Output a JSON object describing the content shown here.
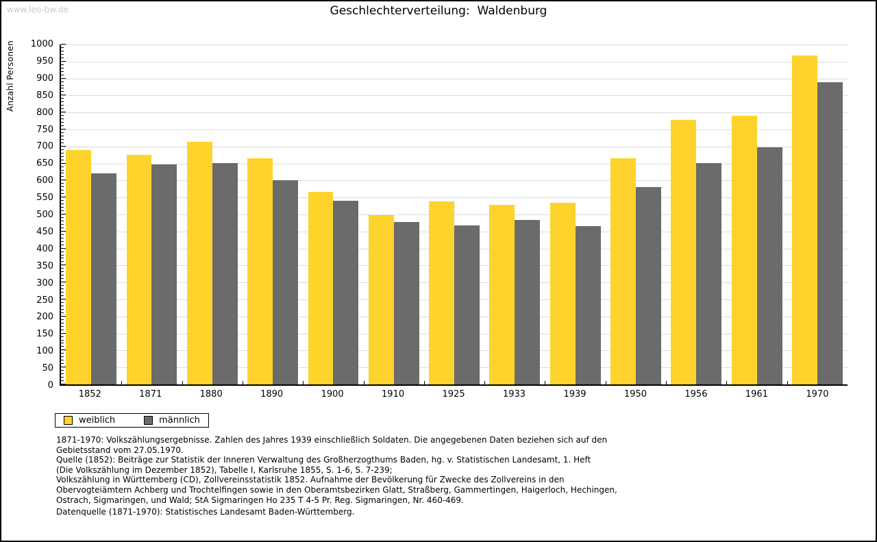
{
  "page": {
    "watermark": "www.leo-bw.de",
    "title": "Geschlechterverteilung:  Waldenburg"
  },
  "chart_data": {
    "type": "bar",
    "title": "Geschlechterverteilung: Waldenburg",
    "xlabel": "",
    "ylabel": "Anzahl Personen",
    "ylim": [
      0,
      1000
    ],
    "ytick_step": 50,
    "yminor_step": 10,
    "grid": true,
    "legend_position": "bottom-left",
    "categories": [
      "1852",
      "1871",
      "1880",
      "1890",
      "1900",
      "1910",
      "1925",
      "1933",
      "1939",
      "1950",
      "1956",
      "1961",
      "1970"
    ],
    "series": [
      {
        "name": "weiblich",
        "color": "#FDD32C",
        "values": [
          690,
          676,
          713,
          665,
          566,
          498,
          539,
          528,
          535,
          666,
          779,
          790,
          967
        ]
      },
      {
        "name": "männlich",
        "color": "#6B6B6B",
        "values": [
          620,
          647,
          652,
          601,
          540,
          478,
          468,
          484,
          466,
          581,
          652,
          698,
          889
        ]
      }
    ]
  },
  "footnotes": {
    "lines": [
      "1871-1970: Volkszählungsergebnisse. Zahlen des Jahres 1939 einschließlich Soldaten. Die angegebenen Daten beziehen sich auf den",
      "Gebietsstand vom 27.05.1970.",
      "Quelle (1852): Beiträge zur Statistik der Inneren Verwaltung des Großherzogthums Baden, hg. v. Statistischen Landesamt, 1. Heft",
      "(Die Volkszählung im Dezember 1852), Tabelle I, Karlsruhe 1855, S. 1-6, S. 7-239;",
      "Volkszählung in Württemberg (CD), Zollvereinsstatistik 1852. Aufnahme der Bevölkerung für Zwecke des Zollvereins in den",
      "Obervogteiämtern Achberg und Trochtelfingen sowie in den Oberamtsbezirken Glatt, Straßberg, Gammertingen, Haigerloch, Hechingen,",
      "Ostrach, Sigmaringen, und Wald; StA Sigmaringen Ho 235 T 4-5 Pr. Reg. Sigmaringen, Nr. 460-469."
    ],
    "datasource": "Datenquelle (1871-1970): Statistisches Landesamt Baden-Württemberg."
  }
}
